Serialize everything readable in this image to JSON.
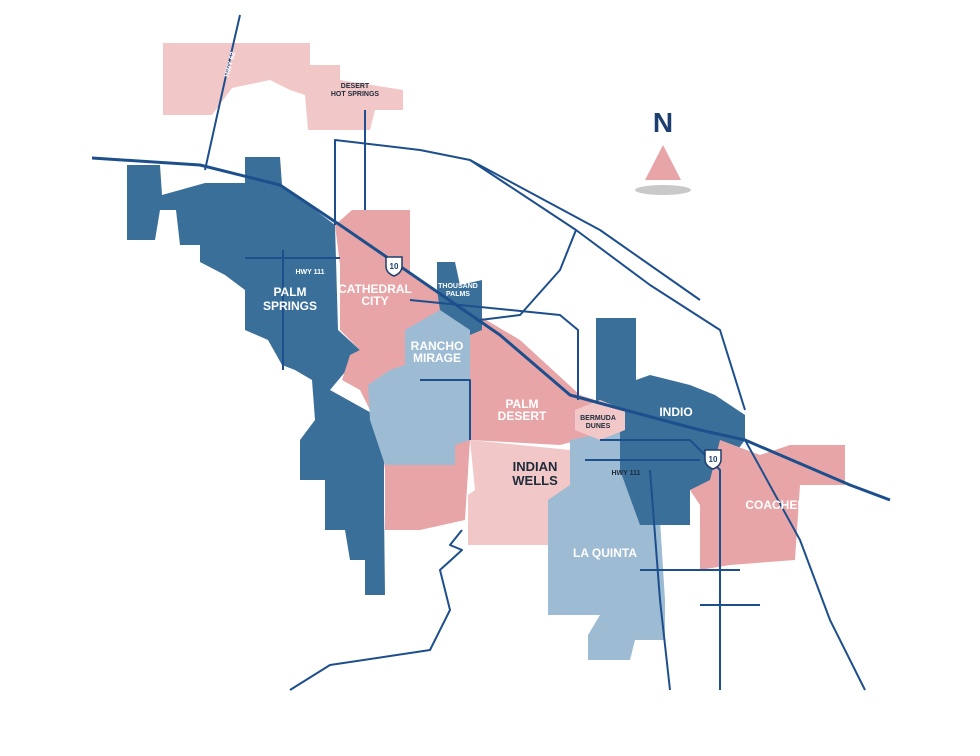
{
  "compass": {
    "label": "N"
  },
  "highway_labels": [
    "HWY 62",
    "HWY 111",
    "HWY 111"
  ],
  "interstate_shields": [
    "10",
    "10"
  ],
  "places": [
    {
      "lines": [
        "DESERT",
        "HOT SPRINGS"
      ]
    },
    {
      "lines": [
        "PALM",
        "SPRINGS"
      ]
    },
    {
      "lines": [
        "CATHEDRAL",
        "CITY"
      ]
    },
    {
      "lines": [
        "THOUSAND",
        "PALMS"
      ]
    },
    {
      "lines": [
        "RANCHO",
        "MIRAGE"
      ]
    },
    {
      "lines": [
        "PALM",
        "DESERT"
      ]
    },
    {
      "lines": [
        "BERMUDA",
        "DUNES"
      ]
    },
    {
      "lines": [
        "INDIO"
      ]
    },
    {
      "lines": [
        "INDIAN",
        "WELLS"
      ]
    },
    {
      "lines": [
        "COACHELLA"
      ]
    },
    {
      "lines": [
        "LA QUINTA"
      ]
    }
  ]
}
